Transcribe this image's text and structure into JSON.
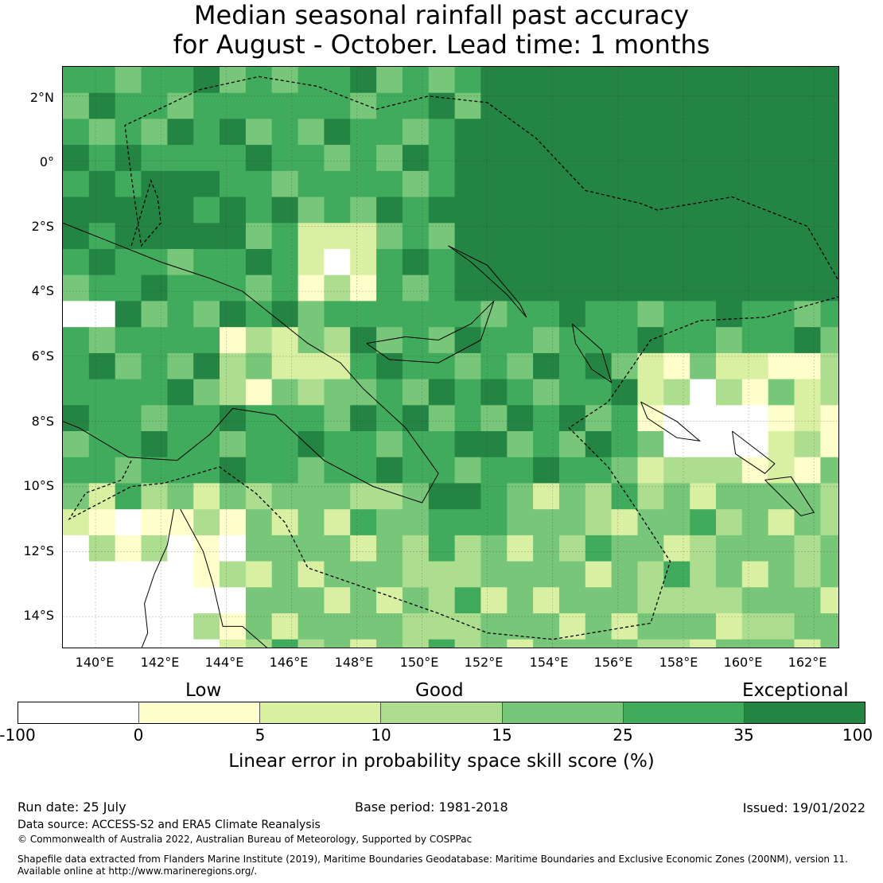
{
  "title": {
    "line1": "Median seasonal rainfall past accuracy",
    "line2": "for August - October. Lead time: 1 months"
  },
  "map": {
    "lat_labels": [
      "2°N",
      "0°",
      "2°S",
      "4°S",
      "6°S",
      "8°S",
      "10°S",
      "12°S",
      "14°S"
    ],
    "lon_labels": [
      "140°E",
      "142°E",
      "144°E",
      "146°E",
      "148°E",
      "150°E",
      "152°E",
      "154°E",
      "156°E",
      "158°E",
      "160°E",
      "162°E"
    ],
    "extent": {
      "lon_min": 139.0,
      "lon_max": 162.8,
      "lat_min": -15.0,
      "lat_max": 2.9
    },
    "cell_size_deg": 0.8,
    "skill_grid_note": "LEPS skill score (%) sampled by cell; rows north to south",
    "colors": {
      "ocean_land_bg": "#2a8a48",
      "grid_line": "#333333",
      "coast": "#000000",
      "boundary": "#000000"
    }
  },
  "legend": {
    "category_labels": [
      "Low",
      "Good",
      "Exceptional"
    ],
    "bins": [
      {
        "from": -100,
        "to": 0,
        "color": "#ffffff"
      },
      {
        "from": 0,
        "to": 5,
        "color": "#ffffcc"
      },
      {
        "from": 5,
        "to": 10,
        "color": "#d9f0a3"
      },
      {
        "from": 10,
        "to": 15,
        "color": "#addd8e"
      },
      {
        "from": 15,
        "to": 25,
        "color": "#78c679"
      },
      {
        "from": 25,
        "to": 35,
        "color": "#41ab5d"
      },
      {
        "from": 35,
        "to": 100,
        "color": "#238443"
      }
    ],
    "ticks": [
      "-100",
      "0",
      "5",
      "10",
      "15",
      "25",
      "35",
      "100"
    ],
    "axis_label": "Linear error in probability space skill score (%)"
  },
  "footer": {
    "run_date": "Run date: 25 July",
    "base_period": "Base period: 1981-2018",
    "issued": "Issued: 19/01/2022",
    "data_source": "Data source: ACCESS-S2 and ERA5 Climate Reanalysis",
    "copyright": "© Commonwealth of Australia 2022, Australian Bureau of Meteorology, Supported by COSPPac",
    "shapefile_line1": "Shapefile data extracted from Flanders Marine Institute (2019), Maritime Boundaries Geodatabase: Maritime Boundaries and Exclusive Economic Zones (200NM), version 11.",
    "shapefile_line2": "Available online at http://www.marineregions.org/."
  }
}
